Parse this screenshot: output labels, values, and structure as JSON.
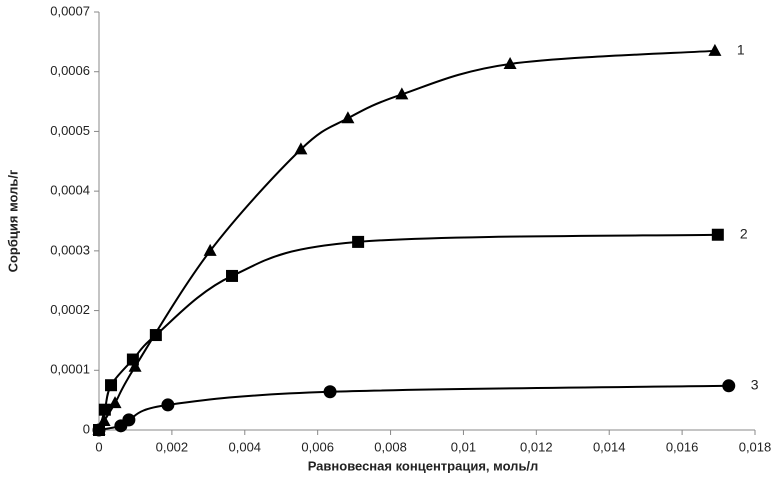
{
  "chart_data": {
    "type": "scatter",
    "xlabel": "Равновесная концентрация, моль/л",
    "ylabel": "Сорбция моль/г",
    "xlim": [
      0,
      0.018
    ],
    "ylim": [
      0,
      0.0007
    ],
    "xticks": [
      0,
      {
        "value": 0.002,
        "label": "0,002"
      },
      {
        "value": 0.004,
        "label": "0,004"
      },
      {
        "value": 0.006,
        "label": "0,006"
      },
      {
        "value": 0.008,
        "label": "0,008"
      },
      {
        "value": 0.01,
        "label": "0,01"
      },
      {
        "value": 0.012,
        "label": "0,012"
      },
      {
        "value": 0.014,
        "label": "0,014"
      },
      {
        "value": 0.016,
        "label": "0,016"
      },
      {
        "value": 0.018,
        "label": "0,018"
      }
    ],
    "yticks": [
      0,
      {
        "value": 0.0001,
        "label": "0,0001"
      },
      {
        "value": 0.0002,
        "label": "0,0002"
      },
      {
        "value": 0.0003,
        "label": "0,0003"
      },
      {
        "value": 0.0004,
        "label": "0,0004"
      },
      {
        "value": 0.0005,
        "label": "0,0005"
      },
      {
        "value": 0.0006,
        "label": "0,0006"
      },
      {
        "value": 0.0007,
        "label": "0,0007"
      }
    ],
    "grid": false,
    "series": [
      {
        "name": "1",
        "color": "#000000",
        "marker": "triangle",
        "x": [
          0,
          0.00014,
          0.00044,
          0.00099,
          0.00305,
          0.00554,
          0.00683,
          0.00831,
          0.01128,
          0.0169
        ],
        "values": [
          0,
          1.5e-05,
          4.5e-05,
          0.000106,
          0.0003,
          0.00047,
          0.000522,
          0.000562,
          0.000613,
          0.000635
        ]
      },
      {
        "name": "2",
        "color": "#000000",
        "marker": "square",
        "x": [
          0,
          0.00016,
          0.00033,
          0.00093,
          0.00156,
          0.00365,
          0.00711,
          0.01698
        ],
        "values": [
          0,
          3.4e-05,
          7.5e-05,
          0.000118,
          0.000159,
          0.000258,
          0.000315,
          0.000327
        ]
      },
      {
        "name": "3",
        "color": "#000000",
        "marker": "circle",
        "x": [
          0,
          0.0006,
          0.00082,
          0.00189,
          0.00634,
          0.01728
        ],
        "values": [
          0,
          7e-06,
          1.7e-05,
          4.2e-05,
          6.4e-05,
          7.4e-05
        ]
      }
    ]
  }
}
